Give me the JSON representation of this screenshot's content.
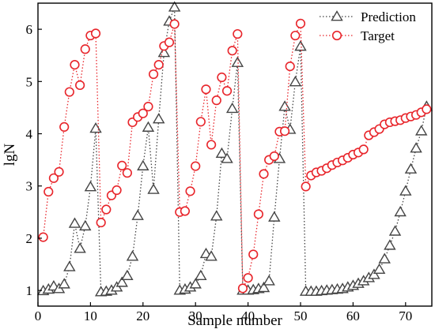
{
  "chart_data": {
    "type": "line",
    "title": "",
    "xlabel": "Sample number",
    "ylabel": "lgN",
    "xlim": [
      0,
      75
    ],
    "ylim": [
      0.7,
      6.5
    ],
    "xticks": [
      0,
      10,
      20,
      30,
      40,
      50,
      60,
      70
    ],
    "yticks": [
      1,
      2,
      3,
      4,
      5,
      6
    ],
    "grid": false,
    "legend_position": "top-right",
    "series": [
      {
        "name": "Prediction",
        "marker": "triangle",
        "color": "#444444",
        "x": [
          1,
          2,
          3,
          4,
          5,
          6,
          7,
          8,
          9,
          10,
          11,
          12,
          13,
          14,
          15,
          16,
          17,
          18,
          19,
          20,
          21,
          22,
          23,
          24,
          25,
          26,
          27,
          28,
          29,
          30,
          31,
          32,
          33,
          34,
          35,
          36,
          37,
          38,
          39,
          40,
          41,
          42,
          43,
          44,
          45,
          46,
          47,
          48,
          49,
          50,
          51,
          52,
          53,
          54,
          55,
          56,
          57,
          58,
          59,
          60,
          61,
          62,
          63,
          64,
          65,
          66,
          67,
          68,
          69,
          70,
          71,
          72,
          73,
          74
        ],
        "y": [
          0.99,
          1.02,
          1.08,
          1.03,
          1.12,
          1.45,
          2.28,
          1.8,
          2.23,
          2.98,
          4.1,
          0.97,
          0.98,
          1.0,
          1.06,
          1.15,
          1.28,
          1.65,
          2.43,
          3.38,
          4.12,
          2.93,
          4.28,
          5.55,
          6.15,
          6.42,
          1.0,
          1.02,
          1.06,
          1.12,
          1.28,
          1.7,
          1.65,
          2.42,
          3.62,
          3.52,
          4.48,
          5.36,
          1.0,
          1.0,
          1.01,
          1.03,
          1.05,
          1.18,
          2.4,
          3.52,
          4.52,
          4.08,
          4.99,
          5.67,
          0.98,
          0.98,
          0.98,
          0.99,
          1.0,
          1.01,
          1.02,
          1.03,
          1.06,
          1.09,
          1.13,
          1.18,
          1.24,
          1.3,
          1.4,
          1.6,
          1.86,
          2.13,
          2.5,
          2.9,
          3.32,
          3.72,
          4.05,
          4.52
        ]
      },
      {
        "name": "Target",
        "marker": "circle",
        "color": "#e8252b",
        "x": [
          1,
          2,
          3,
          4,
          5,
          6,
          7,
          8,
          9,
          10,
          11,
          12,
          13,
          14,
          15,
          16,
          17,
          18,
          19,
          20,
          21,
          22,
          23,
          24,
          25,
          26,
          27,
          28,
          29,
          30,
          31,
          32,
          33,
          34,
          35,
          36,
          37,
          38,
          39,
          40,
          41,
          42,
          43,
          44,
          45,
          46,
          47,
          48,
          49,
          50,
          51,
          52,
          53,
          54,
          55,
          56,
          57,
          58,
          59,
          60,
          61,
          62,
          63,
          64,
          65,
          66,
          67,
          68,
          69,
          70,
          71,
          72,
          73,
          74
        ],
        "y": [
          2.02,
          2.89,
          3.15,
          3.27,
          4.13,
          4.8,
          5.32,
          4.93,
          5.62,
          5.88,
          5.92,
          2.3,
          2.55,
          2.82,
          2.92,
          3.39,
          3.25,
          4.22,
          4.32,
          4.39,
          4.52,
          5.14,
          5.32,
          5.68,
          5.75,
          6.1,
          2.5,
          2.52,
          2.9,
          3.38,
          4.23,
          4.85,
          3.79,
          4.64,
          5.08,
          4.82,
          5.59,
          5.91,
          1.04,
          1.24,
          1.69,
          2.46,
          3.23,
          3.5,
          3.57,
          4.04,
          4.05,
          5.29,
          5.88,
          6.11,
          2.99,
          3.2,
          3.26,
          3.29,
          3.34,
          3.4,
          3.45,
          3.49,
          3.54,
          3.6,
          3.64,
          3.7,
          3.97,
          4.03,
          4.09,
          4.18,
          4.22,
          4.24,
          4.26,
          4.3,
          4.33,
          4.36,
          4.41,
          4.47
        ]
      }
    ]
  }
}
